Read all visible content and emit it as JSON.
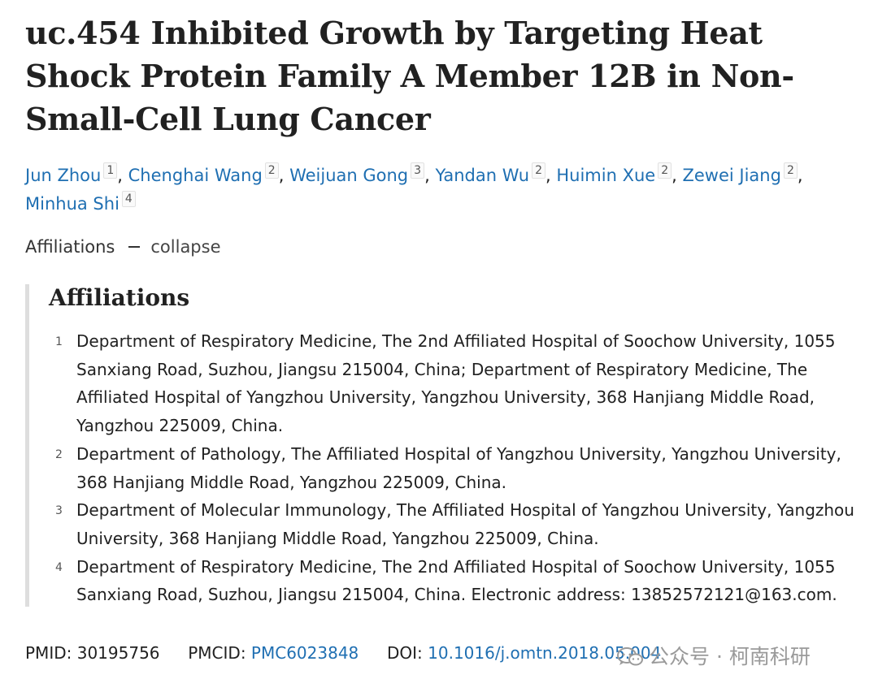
{
  "article": {
    "title": "uc.454 Inhibited Growth by Targeting Heat Shock Protein Family A Member 12B in Non-Small-Cell Lung Cancer"
  },
  "authors": [
    {
      "name": "Jun Zhou",
      "aff": "1",
      "sep": ","
    },
    {
      "name": "Chenghai Wang",
      "aff": "2",
      "sep": ","
    },
    {
      "name": "Weijuan Gong",
      "aff": "3",
      "sep": ","
    },
    {
      "name": "Yandan Wu",
      "aff": "2",
      "sep": ","
    },
    {
      "name": "Huimin Xue",
      "aff": "2",
      "sep": ","
    },
    {
      "name": "Zewei Jiang",
      "aff": "2",
      "sep": ","
    },
    {
      "name": "Minhua Shi",
      "aff": "4",
      "sep": ""
    }
  ],
  "affiliations_toggle": {
    "label": "Affiliations",
    "action": "collapse"
  },
  "affiliations": {
    "heading": "Affiliations",
    "items": [
      {
        "num": "1",
        "text": "Department of Respiratory Medicine, The 2nd Affiliated Hospital of Soochow University, 1055 Sanxiang Road, Suzhou, Jiangsu 215004, China; Department of Respiratory Medicine, The Affiliated Hospital of Yangzhou University, Yangzhou University, 368 Hanjiang Middle Road, Yangzhou 225009, China."
      },
      {
        "num": "2",
        "text": "Department of Pathology, The Affiliated Hospital of Yangzhou University, Yangzhou University, 368 Hanjiang Middle Road, Yangzhou 225009, China."
      },
      {
        "num": "3",
        "text": "Department of Molecular Immunology, The Affiliated Hospital of Yangzhou University, Yangzhou University, 368 Hanjiang Middle Road, Yangzhou 225009, China."
      },
      {
        "num": "4",
        "text": "Department of Respiratory Medicine, The 2nd Affiliated Hospital of Soochow University, 1055 Sanxiang Road, Suzhou, Jiangsu 215004, China. Electronic address: 13852572121@163.com."
      }
    ]
  },
  "identifiers": {
    "pmid_label": "PMID:",
    "pmid": "30195756",
    "pmcid_label": "PMCID:",
    "pmcid": "PMC6023848",
    "doi_label": "DOI:",
    "doi": "10.1016/j.omtn.2018.05.004"
  },
  "watermark": {
    "icon": "wechat-icon",
    "text": "公众号 · 柯南科研"
  },
  "colors": {
    "link": "#1f6fb2",
    "text": "#212121",
    "rule": "#dedede"
  }
}
